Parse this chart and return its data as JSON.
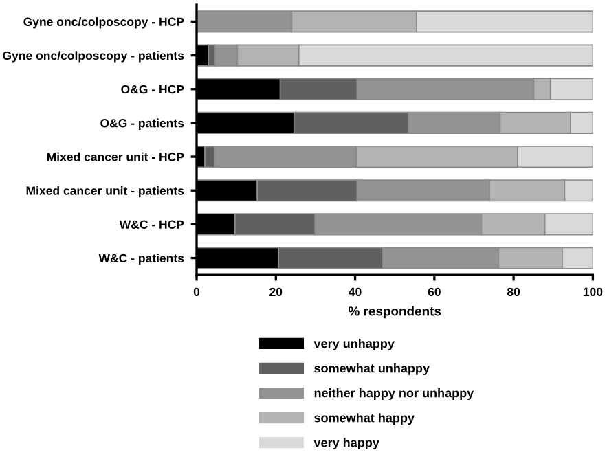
{
  "chart_data": {
    "type": "bar",
    "orientation": "horizontal",
    "stacked": true,
    "xlabel": "% respondents",
    "xlim": [
      0,
      100
    ],
    "xticks": [
      0,
      20,
      40,
      60,
      80,
      100
    ],
    "grid": false,
    "legend": "bottom",
    "categories": [
      "Gyne onc/colposcopy - HCP",
      "Gyne onc/colposcopy - patients",
      "O&G - HCP",
      "O&G - patients",
      "Mixed cancer unit - HCP",
      "Mixed cancer unit - patients",
      "W&C - HCP",
      "W&C - patients"
    ],
    "series": [
      {
        "name": "very unhappy",
        "color": "#000000",
        "values": [
          0,
          3,
          21.1,
          24.6,
          2.1,
          15.3,
          9.7,
          20.7
        ]
      },
      {
        "name": "somewhat unhappy",
        "color": "#606060",
        "values": [
          0,
          1.7,
          19.4,
          28.9,
          2.4,
          25.2,
          20.2,
          26.3
        ]
      },
      {
        "name": "neither happy nor unhappy",
        "color": "#939393",
        "values": [
          24,
          5.6,
          44.6,
          23.1,
          35.8,
          33.4,
          42,
          29.2
        ]
      },
      {
        "name": "somewhat happy",
        "color": "#b3b3b3",
        "values": [
          31.5,
          15.5,
          4.2,
          17.8,
          40.7,
          19,
          16,
          16.1
        ]
      },
      {
        "name": "very happy",
        "color": "#dadada",
        "values": [
          44.5,
          74.2,
          10.7,
          5.6,
          19,
          7.1,
          12.1,
          7.7
        ]
      }
    ]
  }
}
